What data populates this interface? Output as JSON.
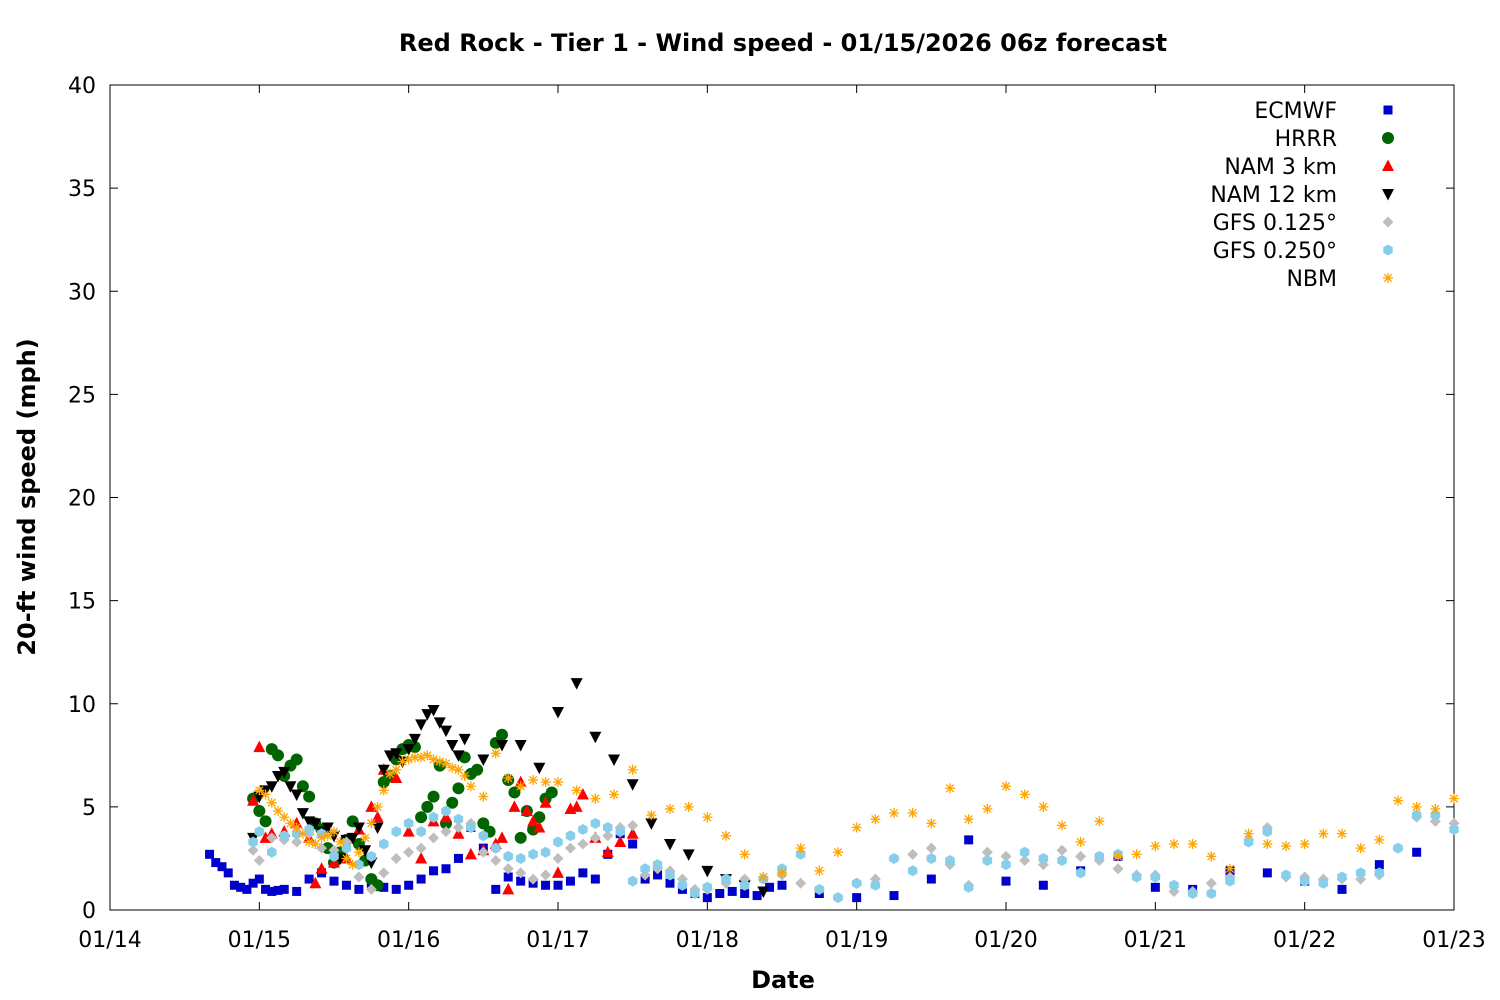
{
  "chart_data": {
    "type": "scatter",
    "title": "Red Rock - Tier 1 - Wind speed - 01/15/2026 06z forecast",
    "xlabel": "Date",
    "ylabel": "20-ft wind speed (mph)",
    "x_unit": "days",
    "xlim": [
      "01/14 00z",
      "01/23 00z"
    ],
    "ylim": [
      0,
      40
    ],
    "x_ticks": [
      "01/14",
      "01/15",
      "01/16",
      "01/17",
      "01/18",
      "01/19",
      "01/20",
      "01/21",
      "01/22",
      "01/23"
    ],
    "y_ticks": [
      0,
      5,
      10,
      15,
      20,
      25,
      30,
      35,
      40
    ],
    "grid": false,
    "legend_position": "top-right",
    "series": [
      {
        "name": "ECMWF",
        "color": "#0000cc",
        "marker": "square",
        "x": [
          "01/14 16z",
          "01/14 17z",
          "01/14 18z",
          "01/14 19z",
          "01/14 20z",
          "01/14 21z",
          "01/14 22z",
          "01/14 23z",
          "01/15 00z",
          "01/15 01z",
          "01/15 02z",
          "01/15 03z",
          "01/15 04z",
          "01/15 06z",
          "01/15 08z",
          "01/15 10z",
          "01/15 12z",
          "01/15 14z",
          "01/15 16z",
          "01/15 18z",
          "01/15 20z",
          "01/15 22z",
          "01/16 00z",
          "01/16 02z",
          "01/16 04z",
          "01/16 06z",
          "01/16 08z",
          "01/16 10z",
          "01/16 12z",
          "01/16 14z",
          "01/16 16z",
          "01/16 18z",
          "01/16 20z",
          "01/16 22z",
          "01/17 00z",
          "01/17 02z",
          "01/17 04z",
          "01/17 06z",
          "01/17 08z",
          "01/17 10z",
          "01/17 12z",
          "01/17 14z",
          "01/17 16z",
          "01/17 18z",
          "01/17 20z",
          "01/17 22z",
          "01/18 00z",
          "01/18 02z",
          "01/18 04z",
          "01/18 06z",
          "01/18 08z",
          "01/18 10z",
          "01/18 12z",
          "01/18 18z",
          "01/19 00z",
          "01/19 06z",
          "01/19 12z",
          "01/19 18z",
          "01/20 00z",
          "01/20 06z",
          "01/20 12z",
          "01/20 18z",
          "01/21 00z",
          "01/21 06z",
          "01/21 12z",
          "01/21 18z",
          "01/22 00z",
          "01/22 06z",
          "01/22 12z",
          "01/22 18z"
        ],
        "y": [
          2.7,
          2.3,
          2.1,
          1.8,
          1.2,
          1.1,
          1.0,
          1.3,
          1.5,
          1.0,
          0.9,
          0.95,
          1.0,
          0.9,
          1.5,
          1.8,
          1.4,
          1.2,
          1.0,
          1.3,
          1.1,
          1.0,
          1.2,
          1.5,
          1.9,
          2.0,
          2.5,
          4.0,
          3.0,
          1.0,
          1.6,
          1.4,
          1.3,
          1.2,
          1.2,
          1.4,
          1.8,
          1.5,
          2.7,
          3.7,
          3.2,
          1.5,
          1.7,
          1.3,
          1.0,
          0.8,
          0.6,
          0.8,
          0.9,
          0.8,
          0.7,
          1.1,
          1.2,
          0.8,
          0.6,
          0.7,
          1.5,
          3.4,
          1.4,
          1.2,
          1.9,
          2.6,
          1.1,
          1.0,
          1.9,
          1.8,
          1.4,
          1.0,
          2.2,
          2.8
        ]
      },
      {
        "name": "HRRR",
        "color": "#006400",
        "marker": "circle",
        "x": [
          "01/14 23z",
          "01/15 00z",
          "01/15 01z",
          "01/15 02z",
          "01/15 03z",
          "01/15 04z",
          "01/15 05z",
          "01/15 06z",
          "01/15 07z",
          "01/15 08z",
          "01/15 09z",
          "01/15 10z",
          "01/15 11z",
          "01/15 12z",
          "01/15 13z",
          "01/15 14z",
          "01/15 15z",
          "01/15 16z",
          "01/15 17z",
          "01/15 18z",
          "01/15 19z",
          "01/15 20z",
          "01/15 21z",
          "01/15 22z",
          "01/15 23z",
          "01/16 00z",
          "01/16 01z",
          "01/16 02z",
          "01/16 03z",
          "01/16 04z",
          "01/16 05z",
          "01/16 06z",
          "01/16 07z",
          "01/16 08z",
          "01/16 09z",
          "01/16 10z",
          "01/16 11z",
          "01/16 12z",
          "01/16 13z",
          "01/16 14z",
          "01/16 15z",
          "01/16 16z",
          "01/16 17z",
          "01/16 18z",
          "01/16 19z",
          "01/16 20z",
          "01/16 21z",
          "01/16 22z",
          "01/16 23z"
        ],
        "y": [
          5.4,
          4.8,
          4.3,
          7.8,
          7.5,
          6.5,
          7.0,
          7.3,
          6.0,
          5.5,
          4.2,
          3.9,
          3.0,
          2.3,
          2.8,
          3.4,
          4.3,
          3.2,
          2.4,
          1.5,
          1.2,
          6.2,
          6.5,
          7.3,
          7.8,
          8.0,
          7.9,
          4.5,
          5.0,
          5.5,
          7.0,
          4.2,
          5.2,
          5.9,
          7.4,
          6.6,
          6.8,
          4.2,
          3.8,
          8.1,
          8.5,
          6.3,
          5.7,
          3.5,
          4.8,
          3.9,
          4.5,
          5.4,
          5.7
        ]
      },
      {
        "name": "NAM 3 km",
        "color": "#ff0000",
        "marker": "triangle-up",
        "x": [
          "01/14 23z",
          "01/15 00z",
          "01/15 01z",
          "01/15 02z",
          "01/15 04z",
          "01/15 06z",
          "01/15 08z",
          "01/15 09z",
          "01/15 10z",
          "01/15 12z",
          "01/15 14z",
          "01/15 16z",
          "01/15 18z",
          "01/15 19z",
          "01/15 20z",
          "01/15 22z",
          "01/16 00z",
          "01/16 02z",
          "01/16 04z",
          "01/16 06z",
          "01/16 08z",
          "01/16 10z",
          "01/16 12z",
          "01/16 14z",
          "01/16 15z",
          "01/16 16z",
          "01/16 17z",
          "01/16 18z",
          "01/16 19z",
          "01/16 20z",
          "01/16 21z",
          "01/16 22z",
          "01/17 00z",
          "01/17 02z",
          "01/17 03z",
          "01/17 04z",
          "01/17 06z",
          "01/17 08z",
          "01/17 10z",
          "01/17 12z"
        ],
        "y": [
          5.3,
          7.9,
          3.5,
          3.7,
          3.8,
          4.2,
          3.5,
          1.3,
          2.0,
          2.3,
          2.5,
          3.9,
          5.0,
          4.5,
          6.8,
          6.4,
          3.8,
          2.5,
          4.3,
          4.5,
          3.7,
          2.7,
          2.9,
          3.2,
          3.5,
          1.0,
          5.0,
          6.2,
          4.8,
          4.3,
          4.0,
          5.2,
          1.8,
          4.9,
          5.0,
          5.6,
          3.5,
          2.8,
          3.3,
          3.7
        ]
      },
      {
        "name": "NAM 12 km",
        "color": "#000000",
        "marker": "triangle-down",
        "x": [
          "01/14 23z",
          "01/15 00z",
          "01/15 01z",
          "01/15 02z",
          "01/15 03z",
          "01/15 04z",
          "01/15 05z",
          "01/15 06z",
          "01/15 07z",
          "01/15 08z",
          "01/15 09z",
          "01/15 10z",
          "01/15 11z",
          "01/15 12z",
          "01/15 13z",
          "01/15 14z",
          "01/15 15z",
          "01/15 16z",
          "01/15 17z",
          "01/15 18z",
          "01/15 19z",
          "01/15 20z",
          "01/15 21z",
          "01/15 22z",
          "01/15 23z",
          "01/16 00z",
          "01/16 01z",
          "01/16 02z",
          "01/16 03z",
          "01/16 04z",
          "01/16 05z",
          "01/16 06z",
          "01/16 07z",
          "01/16 08z",
          "01/16 09z",
          "01/16 12z",
          "01/16 15z",
          "01/16 18z",
          "01/16 21z",
          "01/17 00z",
          "01/17 03z",
          "01/17 06z",
          "01/17 09z",
          "01/17 12z",
          "01/17 15z",
          "01/17 18z",
          "01/17 21z",
          "01/18 00z",
          "01/18 03z",
          "01/18 06z",
          "01/18 09z"
        ],
        "y": [
          3.5,
          5.5,
          5.8,
          6.0,
          6.5,
          6.7,
          6.0,
          5.6,
          4.7,
          4.3,
          4.2,
          3.8,
          4.0,
          3.6,
          2.5,
          3.4,
          3.5,
          4.0,
          2.9,
          2.3,
          4.0,
          6.8,
          7.5,
          7.6,
          7.2,
          7.8,
          8.3,
          9.0,
          9.5,
          9.7,
          9.1,
          8.7,
          8.0,
          7.5,
          8.3,
          7.3,
          8.0,
          8.0,
          6.9,
          9.6,
          11.0,
          8.4,
          7.3,
          6.1,
          4.2,
          3.2,
          2.7,
          1.9,
          1.5,
          1.2,
          0.9
        ]
      },
      {
        "name": "GFS 0.125°",
        "color": "#bebebe",
        "marker": "diamond",
        "x": [
          "01/14 23z",
          "01/15 00z",
          "01/15 02z",
          "01/15 04z",
          "01/15 06z",
          "01/15 08z",
          "01/15 10z",
          "01/15 12z",
          "01/15 14z",
          "01/15 16z",
          "01/15 18z",
          "01/15 20z",
          "01/15 22z",
          "01/16 00z",
          "01/16 02z",
          "01/16 04z",
          "01/16 06z",
          "01/16 08z",
          "01/16 10z",
          "01/16 12z",
          "01/16 14z",
          "01/16 16z",
          "01/16 18z",
          "01/16 20z",
          "01/16 22z",
          "01/17 00z",
          "01/17 02z",
          "01/17 04z",
          "01/17 06z",
          "01/17 08z",
          "01/17 10z",
          "01/17 12z",
          "01/17 14z",
          "01/17 16z",
          "01/17 18z",
          "01/17 20z",
          "01/17 22z",
          "01/18 00z",
          "01/18 03z",
          "01/18 06z",
          "01/18 09z",
          "01/18 12z",
          "01/18 15z",
          "01/18 18z",
          "01/18 21z",
          "01/19 00z",
          "01/19 03z",
          "01/19 06z",
          "01/19 09z",
          "01/19 12z",
          "01/19 15z",
          "01/19 18z",
          "01/19 21z",
          "01/20 00z",
          "01/20 03z",
          "01/20 06z",
          "01/20 09z",
          "01/20 12z",
          "01/20 15z",
          "01/20 18z",
          "01/20 21z",
          "01/21 00z",
          "01/21 03z",
          "01/21 06z",
          "01/21 09z",
          "01/21 12z",
          "01/21 15z",
          "01/21 18z",
          "01/21 21z",
          "01/22 00z",
          "01/22 03z",
          "01/22 06z",
          "01/22 09z",
          "01/22 12z",
          "01/22 15z",
          "01/22 18z",
          "01/22 21z",
          "01/23 00z"
        ],
        "y": [
          2.9,
          2.4,
          3.5,
          3.4,
          3.3,
          3.7,
          3.0,
          2.9,
          3.3,
          1.6,
          1.0,
          1.8,
          2.5,
          2.8,
          3.0,
          3.5,
          3.8,
          4.0,
          4.2,
          2.8,
          2.4,
          2.0,
          1.8,
          1.5,
          1.7,
          2.5,
          3.0,
          3.2,
          3.5,
          3.6,
          4.0,
          4.1,
          1.7,
          2.0,
          1.9,
          1.5,
          1.0,
          1.0,
          1.3,
          1.5,
          1.5,
          1.7,
          1.3,
          1.0,
          0.6,
          1.3,
          1.5,
          2.5,
          2.7,
          3.0,
          2.2,
          1.2,
          2.8,
          2.6,
          2.4,
          2.2,
          2.9,
          2.6,
          2.4,
          2.0,
          1.7,
          1.7,
          0.9,
          0.9,
          1.3,
          1.6,
          3.4,
          4.0,
          1.6,
          1.6,
          1.5,
          1.5,
          1.5,
          1.7,
          3.0,
          4.5,
          4.3,
          4.2
        ]
      },
      {
        "name": "GFS 0.250°",
        "color": "#87ceeb",
        "marker": "hexagon",
        "x": [
          "01/14 23z",
          "01/15 00z",
          "01/15 02z",
          "01/15 04z",
          "01/15 06z",
          "01/15 08z",
          "01/15 10z",
          "01/15 12z",
          "01/15 14z",
          "01/15 16z",
          "01/15 18z",
          "01/15 20z",
          "01/15 22z",
          "01/16 00z",
          "01/16 02z",
          "01/16 04z",
          "01/16 06z",
          "01/16 08z",
          "01/16 10z",
          "01/16 12z",
          "01/16 14z",
          "01/16 16z",
          "01/16 18z",
          "01/16 20z",
          "01/16 22z",
          "01/17 00z",
          "01/17 02z",
          "01/17 04z",
          "01/17 06z",
          "01/17 08z",
          "01/17 10z",
          "01/17 12z",
          "01/17 14z",
          "01/17 16z",
          "01/17 18z",
          "01/17 20z",
          "01/17 22z",
          "01/18 00z",
          "01/18 03z",
          "01/18 06z",
          "01/18 09z",
          "01/18 12z",
          "01/18 15z",
          "01/18 18z",
          "01/18 21z",
          "01/19 00z",
          "01/19 03z",
          "01/19 06z",
          "01/19 09z",
          "01/19 12z",
          "01/19 15z",
          "01/19 18z",
          "01/19 21z",
          "01/20 00z",
          "01/20 03z",
          "01/20 06z",
          "01/20 09z",
          "01/20 12z",
          "01/20 15z",
          "01/20 18z",
          "01/20 21z",
          "01/21 00z",
          "01/21 03z",
          "01/21 06z",
          "01/21 09z",
          "01/21 12z",
          "01/21 15z",
          "01/21 18z",
          "01/21 21z",
          "01/22 00z",
          "01/22 03z",
          "01/22 06z",
          "01/22 09z",
          "01/22 12z",
          "01/22 15z",
          "01/22 18z",
          "01/22 21z",
          "01/23 00z"
        ],
        "y": [
          3.3,
          3.8,
          2.8,
          3.6,
          3.7,
          3.9,
          3.7,
          2.6,
          3.0,
          2.2,
          2.6,
          3.2,
          3.8,
          4.2,
          3.8,
          4.5,
          4.8,
          4.4,
          4.0,
          3.6,
          3.0,
          2.6,
          2.5,
          2.7,
          2.8,
          3.3,
          3.6,
          3.9,
          4.2,
          4.0,
          3.8,
          1.4,
          2.0,
          2.2,
          1.7,
          1.2,
          0.8,
          1.1,
          1.5,
          1.2,
          1.5,
          2.0,
          2.7,
          1.0,
          0.6,
          1.3,
          1.2,
          2.5,
          1.9,
          2.5,
          2.4,
          1.1,
          2.4,
          2.2,
          2.8,
          2.5,
          2.4,
          1.8,
          2.6,
          2.7,
          1.6,
          1.6,
          1.2,
          0.8,
          0.8,
          1.4,
          3.3,
          3.8,
          1.7,
          1.4,
          1.3,
          1.6,
          1.8,
          1.8,
          3.0,
          4.6,
          4.6,
          3.9
        ]
      },
      {
        "name": "NBM",
        "color": "#ffa500",
        "marker": "asterisk",
        "x": [
          "01/15 00z",
          "01/15 01z",
          "01/15 02z",
          "01/15 03z",
          "01/15 04z",
          "01/15 05z",
          "01/15 06z",
          "01/15 07z",
          "01/15 08z",
          "01/15 09z",
          "01/15 10z",
          "01/15 11z",
          "01/15 12z",
          "01/15 13z",
          "01/15 14z",
          "01/15 15z",
          "01/15 16z",
          "01/15 17z",
          "01/15 18z",
          "01/15 19z",
          "01/15 20z",
          "01/15 21z",
          "01/15 22z",
          "01/15 23z",
          "01/16 00z",
          "01/16 01z",
          "01/16 02z",
          "01/16 03z",
          "01/16 04z",
          "01/16 05z",
          "01/16 06z",
          "01/16 07z",
          "01/16 08z",
          "01/16 09z",
          "01/16 10z",
          "01/16 12z",
          "01/16 14z",
          "01/16 16z",
          "01/16 18z",
          "01/16 20z",
          "01/16 22z",
          "01/17 00z",
          "01/17 03z",
          "01/17 06z",
          "01/17 09z",
          "01/17 12z",
          "01/17 15z",
          "01/17 18z",
          "01/17 21z",
          "01/18 00z",
          "01/18 03z",
          "01/18 06z",
          "01/18 09z",
          "01/18 12z",
          "01/18 15z",
          "01/18 18z",
          "01/18 21z",
          "01/19 00z",
          "01/19 03z",
          "01/19 06z",
          "01/19 09z",
          "01/19 12z",
          "01/19 15z",
          "01/19 18z",
          "01/19 21z",
          "01/20 00z",
          "01/20 03z",
          "01/20 06z",
          "01/20 09z",
          "01/20 12z",
          "01/20 15z",
          "01/20 18z",
          "01/20 21z",
          "01/21 00z",
          "01/21 03z",
          "01/21 06z",
          "01/21 09z",
          "01/21 12z",
          "01/21 15z",
          "01/21 18z",
          "01/21 21z",
          "01/22 00z",
          "01/22 03z",
          "01/22 06z",
          "01/22 09z",
          "01/22 12z",
          "01/22 15z",
          "01/22 18z",
          "01/22 21z",
          "01/23 00z"
        ],
        "y": [
          5.8,
          5.6,
          5.2,
          4.8,
          4.5,
          4.2,
          4.0,
          3.7,
          3.3,
          3.2,
          3.5,
          3.6,
          3.8,
          3.3,
          2.5,
          2.2,
          2.8,
          3.5,
          4.2,
          5.0,
          5.8,
          6.6,
          6.8,
          7.2,
          7.3,
          7.4,
          7.4,
          7.5,
          7.3,
          7.2,
          7.1,
          6.9,
          6.8,
          6.5,
          6.0,
          5.5,
          7.6,
          6.4,
          6.0,
          6.3,
          6.2,
          6.2,
          5.8,
          5.4,
          5.6,
          6.8,
          4.6,
          4.9,
          5.0,
          4.5,
          3.6,
          2.7,
          1.6,
          1.8,
          3.0,
          1.9,
          2.8,
          4.0,
          4.4,
          4.7,
          4.7,
          4.2,
          5.9,
          4.4,
          4.9,
          6.0,
          5.6,
          5.0,
          4.1,
          3.3,
          4.3,
          2.6,
          2.7,
          3.1,
          3.2,
          3.2,
          2.6,
          2.0,
          3.7,
          3.2,
          3.1,
          3.2,
          3.7,
          3.7,
          3.0,
          3.4,
          5.3,
          5.0,
          4.9,
          5.4
        ]
      }
    ]
  }
}
